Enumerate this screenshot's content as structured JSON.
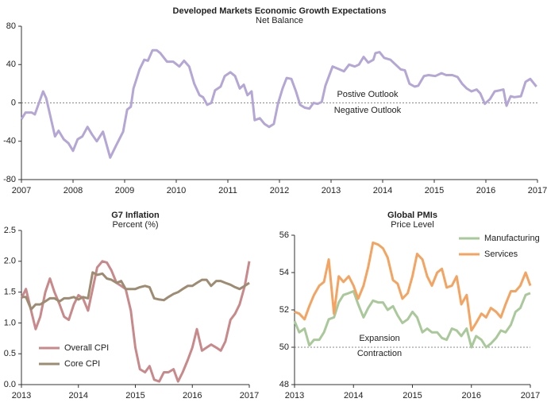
{
  "chart_data": [
    {
      "type": "line",
      "title": "Developed Markets Economic Growth Expectations",
      "subtitle": "Net Balance",
      "x": [
        2007.0,
        2007.08,
        2007.2,
        2007.26,
        2007.42,
        2007.48,
        2007.65,
        2007.72,
        2007.82,
        2007.91,
        2008.0,
        2008.09,
        2008.18,
        2008.28,
        2008.37,
        2008.46,
        2008.58,
        2008.72,
        2008.83,
        2008.97,
        2009.05,
        2009.12,
        2009.17,
        2009.29,
        2009.38,
        2009.45,
        2009.54,
        2009.62,
        2009.69,
        2009.82,
        2009.94,
        2010.06,
        2010.15,
        2010.25,
        2010.35,
        2010.45,
        2010.52,
        2010.6,
        2010.68,
        2010.75,
        2010.86,
        2010.94,
        2011.05,
        2011.14,
        2011.23,
        2011.31,
        2011.38,
        2011.46,
        2011.52,
        2011.62,
        2011.71,
        2011.8,
        2011.89,
        2011.97,
        2012.06,
        2012.14,
        2012.23,
        2012.32,
        2012.4,
        2012.49,
        2012.58,
        2012.66,
        2012.74,
        2012.82,
        2012.89,
        2013.03,
        2013.12,
        2013.25,
        2013.35,
        2013.46,
        2013.54,
        2013.63,
        2013.72,
        2013.82,
        2013.86,
        2013.94,
        2014.03,
        2014.15,
        2014.25,
        2014.35,
        2014.43,
        2014.52,
        2014.62,
        2014.69,
        2014.8,
        2014.89,
        2015.02,
        2015.14,
        2015.23,
        2015.35,
        2015.45,
        2015.54,
        2015.63,
        2015.72,
        2015.82,
        2015.89,
        2015.98,
        2016.08,
        2016.17,
        2016.26,
        2016.34,
        2016.4,
        2016.48,
        2016.55,
        2016.68,
        2016.77,
        2016.86,
        2016.98
      ],
      "values": [
        -17,
        -10,
        -10,
        -12,
        12,
        5,
        -35,
        -29,
        -38,
        -42,
        -50,
        -38,
        -35,
        -25,
        -33,
        -40,
        -30,
        -57,
        -45,
        -30,
        -7,
        -4,
        15,
        35,
        45,
        44,
        55,
        55,
        52,
        43,
        43,
        38,
        44,
        38,
        20,
        8,
        6,
        -2,
        0,
        13,
        17,
        28,
        32,
        28,
        15,
        19,
        8,
        12,
        -18,
        -16,
        -22,
        -25,
        -22,
        -1,
        15,
        26,
        25,
        12,
        -2,
        -5,
        -6,
        0,
        -1,
        1,
        18,
        38,
        36,
        33,
        40,
        38,
        40,
        48,
        42,
        45,
        52,
        53,
        47,
        45,
        40,
        35,
        34,
        20,
        17,
        18,
        28,
        29,
        28,
        31,
        29,
        29,
        27,
        20,
        15,
        12,
        14,
        10,
        -1,
        4,
        12,
        13,
        14,
        -3,
        7,
        6,
        7,
        22,
        25,
        17
      ],
      "color": "#b4a7d6",
      "xlim": [
        2007,
        2017
      ],
      "xticks": [
        2007,
        2008,
        2009,
        2010,
        2011,
        2012,
        2013,
        2014,
        2015,
        2016,
        2017
      ],
      "ylim": [
        -80,
        80
      ],
      "yticks": [
        -80,
        -40,
        0,
        40,
        80
      ],
      "ref_line": 0,
      "annotations": [
        "Postive Outlook",
        "Negative Outlook"
      ]
    },
    {
      "type": "line",
      "title": "G7 Inflation",
      "subtitle": "Percent (%)",
      "x": [
        2013.0,
        2013.08,
        2013.17,
        2013.25,
        2013.33,
        2013.42,
        2013.5,
        2013.58,
        2013.67,
        2013.75,
        2013.83,
        2013.92,
        2014.0,
        2014.08,
        2014.17,
        2014.25,
        2014.33,
        2014.42,
        2014.5,
        2014.58,
        2014.67,
        2014.75,
        2014.83,
        2014.92,
        2015.0,
        2015.08,
        2015.17,
        2015.25,
        2015.33,
        2015.42,
        2015.5,
        2015.58,
        2015.67,
        2015.75,
        2015.83,
        2015.92,
        2016.0,
        2016.08,
        2016.17,
        2016.25,
        2016.33,
        2016.42,
        2016.5,
        2016.58,
        2016.67,
        2016.75,
        2016.83,
        2016.92,
        2017.0
      ],
      "series": [
        {
          "name": "Overall CPI",
          "color": "#c9898a",
          "values": [
            1.4,
            1.55,
            1.2,
            0.9,
            1.1,
            1.5,
            1.72,
            1.5,
            1.3,
            1.1,
            1.05,
            1.3,
            1.45,
            1.4,
            1.2,
            1.55,
            1.9,
            2.0,
            1.98,
            1.85,
            1.65,
            1.6,
            1.55,
            1.2,
            0.6,
            0.25,
            0.2,
            0.3,
            0.08,
            0.05,
            0.2,
            0.2,
            0.25,
            0.05,
            0.2,
            0.4,
            0.6,
            0.9,
            0.55,
            0.6,
            0.65,
            0.6,
            0.55,
            0.7,
            1.05,
            1.15,
            1.3,
            1.6,
            2.0
          ]
        },
        {
          "name": "Core CPI",
          "color": "#9e8c72",
          "values": [
            1.42,
            1.42,
            1.22,
            1.3,
            1.3,
            1.35,
            1.4,
            1.4,
            1.35,
            1.4,
            1.4,
            1.42,
            1.38,
            1.42,
            1.4,
            1.82,
            1.78,
            1.8,
            1.72,
            1.7,
            1.65,
            1.68,
            1.55,
            1.55,
            1.55,
            1.58,
            1.6,
            1.58,
            1.4,
            1.38,
            1.37,
            1.42,
            1.47,
            1.5,
            1.55,
            1.6,
            1.6,
            1.65,
            1.7,
            1.7,
            1.6,
            1.68,
            1.68,
            1.65,
            1.62,
            1.58,
            1.55,
            1.6,
            1.65
          ]
        }
      ],
      "xlim": [
        2013,
        2017
      ],
      "xticks": [
        2013,
        2014,
        2015,
        2016,
        2017
      ],
      "ylim": [
        0,
        2.5
      ],
      "yticks": [
        {
          "value": 0,
          "label": "0.0"
        },
        0.5,
        {
          "value": 1,
          "label": "1.0"
        },
        1.5,
        {
          "value": 2,
          "label": "2.0"
        },
        2.5
      ],
      "legend": "lower left"
    },
    {
      "type": "line",
      "title": "Global PMIs",
      "subtitle": "Price Level",
      "x": [
        2013.0,
        2013.08,
        2013.17,
        2013.25,
        2013.33,
        2013.42,
        2013.5,
        2013.58,
        2013.67,
        2013.75,
        2013.83,
        2013.92,
        2014.0,
        2014.08,
        2014.17,
        2014.25,
        2014.33,
        2014.42,
        2014.5,
        2014.58,
        2014.67,
        2014.75,
        2014.83,
        2014.92,
        2015.0,
        2015.08,
        2015.17,
        2015.25,
        2015.33,
        2015.42,
        2015.5,
        2015.58,
        2015.67,
        2015.75,
        2015.83,
        2015.92,
        2016.0,
        2016.08,
        2016.17,
        2016.25,
        2016.33,
        2016.42,
        2016.5,
        2016.58,
        2016.67,
        2016.75,
        2016.83,
        2016.92,
        2017.0
      ],
      "series": [
        {
          "name": "Manufacturing",
          "color": "#a9c99a",
          "values": [
            51.4,
            50.8,
            51.0,
            50.1,
            50.4,
            50.4,
            50.8,
            51.5,
            51.6,
            52.4,
            52.8,
            52.9,
            53.0,
            52.3,
            51.6,
            52.1,
            52.5,
            52.4,
            52.4,
            52.0,
            52.2,
            51.7,
            51.3,
            51.5,
            51.9,
            51.6,
            50.8,
            51.0,
            50.8,
            50.8,
            50.5,
            50.4,
            51.0,
            50.9,
            50.6,
            51.0,
            50.0,
            50.6,
            50.4,
            50.0,
            50.2,
            50.5,
            50.9,
            50.8,
            51.2,
            51.9,
            52.1,
            52.8,
            52.9
          ]
        },
        {
          "name": "Services",
          "color": "#f4a460",
          "values": [
            51.9,
            51.8,
            51.5,
            52.2,
            52.8,
            53.3,
            53.5,
            54.7,
            51.8,
            53.8,
            53.5,
            53.8,
            53.3,
            52.6,
            53.3,
            54.3,
            55.6,
            55.5,
            55.3,
            54.8,
            53.6,
            53.4,
            52.6,
            52.9,
            53.8,
            55.0,
            54.7,
            53.8,
            53.3,
            54.0,
            54.2,
            53.2,
            53.3,
            53.8,
            52.3,
            52.8,
            50.9,
            51.3,
            51.8,
            51.6,
            52.1,
            51.9,
            51.6,
            52.3,
            53.0,
            53.0,
            53.3,
            54.0,
            53.3
          ]
        }
      ],
      "xlim": [
        2013,
        2017
      ],
      "xticks": [
        2013,
        2014,
        2015,
        2016,
        2017
      ],
      "ylim": [
        48,
        56
      ],
      "yticks": [
        48,
        50,
        52,
        54,
        56
      ],
      "ref_line": 50,
      "annotations": [
        "Expansion",
        "Contraction"
      ],
      "legend": "upper right"
    }
  ]
}
